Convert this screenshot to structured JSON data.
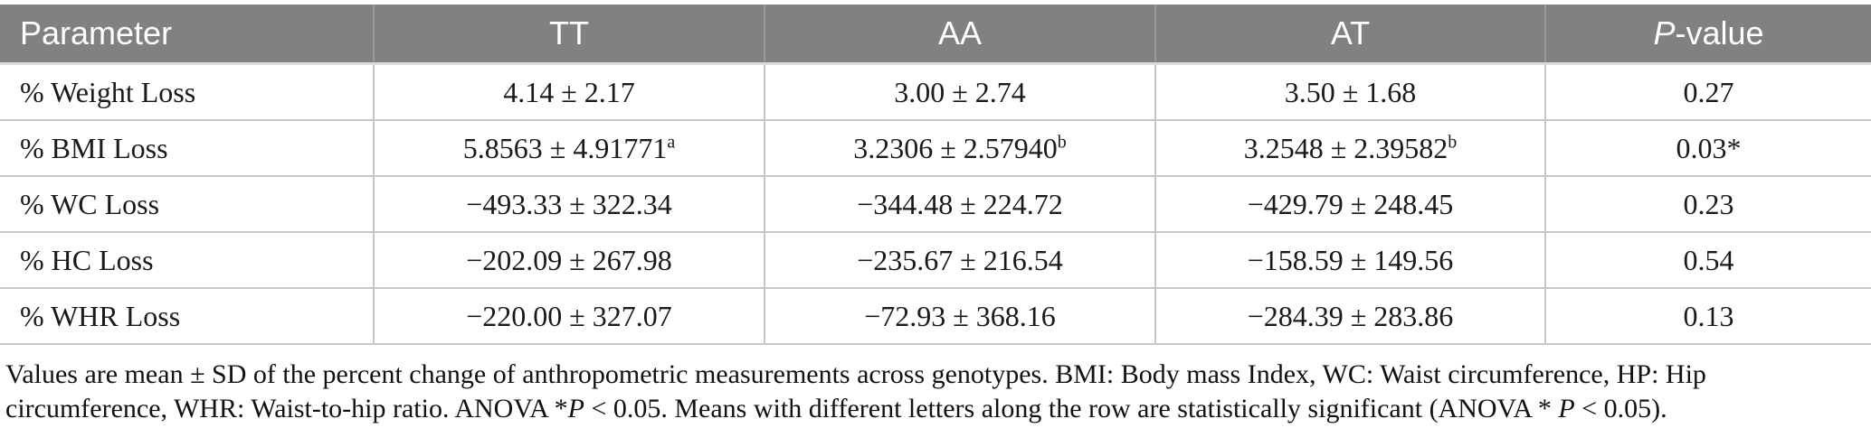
{
  "colors": {
    "header_bg": "#818181",
    "header_text": "#ffffff",
    "body_text": "#1a1a1a",
    "cell_border": "#c6c6c6"
  },
  "table": {
    "columns": [
      {
        "name": "parameter",
        "segments": [
          {
            "t": "Parameter"
          }
        ]
      },
      {
        "name": "tt",
        "segments": [
          {
            "t": "TT"
          }
        ]
      },
      {
        "name": "aa",
        "segments": [
          {
            "t": "AA"
          }
        ]
      },
      {
        "name": "at",
        "segments": [
          {
            "t": "AT"
          }
        ]
      },
      {
        "name": "p-value",
        "segments": [
          {
            "t": "P",
            "i": true
          },
          {
            "t": "-value"
          }
        ]
      }
    ],
    "rows": [
      {
        "cells": [
          {
            "t": "% Weight Loss"
          },
          {
            "t": "4.14 ± 2.17"
          },
          {
            "t": "3.00 ± 2.74"
          },
          {
            "t": "3.50 ± 1.68"
          },
          {
            "t": "0.27"
          }
        ]
      },
      {
        "cells": [
          {
            "t": "% BMI Loss"
          },
          {
            "t": "5.8563 ± 4.91771",
            "sup": "a"
          },
          {
            "t": "3.2306 ± 2.57940",
            "sup": "b"
          },
          {
            "t": "3.2548 ± 2.39582",
            "sup": "b"
          },
          {
            "t": "0.03*"
          }
        ]
      },
      {
        "cells": [
          {
            "t": "% WC Loss"
          },
          {
            "t": "−493.33 ± 322.34"
          },
          {
            "t": "−344.48 ± 224.72"
          },
          {
            "t": "−429.79 ± 248.45"
          },
          {
            "t": "0.23"
          }
        ]
      },
      {
        "cells": [
          {
            "t": "% HC Loss"
          },
          {
            "t": "−202.09 ± 267.98"
          },
          {
            "t": "−235.67 ± 216.54"
          },
          {
            "t": "−158.59 ± 149.56"
          },
          {
            "t": "0.54"
          }
        ]
      },
      {
        "cells": [
          {
            "t": "% WHR Loss"
          },
          {
            "t": "−220.00 ± 327.07"
          },
          {
            "t": "−72.93 ± 368.16"
          },
          {
            "t": "−284.39 ± 283.86"
          },
          {
            "t": "0.13"
          }
        ]
      }
    ]
  },
  "footnote": {
    "segments": [
      {
        "t": "Values are mean ± SD of the percent change of anthropometric measurements across genotypes. BMI: Body mass Index, WC: Waist circumference, HP: Hip circumference, WHR: Waist-to-hip ratio. ANOVA *"
      },
      {
        "t": "P",
        "i": true
      },
      {
        "t": " < 0.05. Means with different letters along the row are statistically significant (ANOVA * "
      },
      {
        "t": "P",
        "i": true
      },
      {
        "t": " < 0.05)."
      }
    ]
  },
  "chart_data": {
    "type": "table",
    "columns": [
      "Parameter",
      "TT",
      "AA",
      "AT",
      "P-value"
    ],
    "rows": [
      [
        "% Weight Loss",
        "4.14 ± 2.17",
        "3.00 ± 2.74",
        "3.50 ± 1.68",
        "0.27"
      ],
      [
        "% BMI Loss",
        "5.8563 ± 4.91771 (a)",
        "3.2306 ± 2.57940 (b)",
        "3.2548 ± 2.39582 (b)",
        "0.03*"
      ],
      [
        "% WC Loss",
        "−493.33 ± 322.34",
        "−344.48 ± 224.72",
        "−429.79 ± 248.45",
        "0.23"
      ],
      [
        "% HC Loss",
        "−202.09 ± 267.98",
        "−235.67 ± 216.54",
        "−158.59 ± 149.56",
        "0.54"
      ],
      [
        "% WHR Loss",
        "−220.00 ± 327.07",
        "−72.93 ± 368.16",
        "−284.39 ± 283.86",
        "0.13"
      ]
    ]
  }
}
